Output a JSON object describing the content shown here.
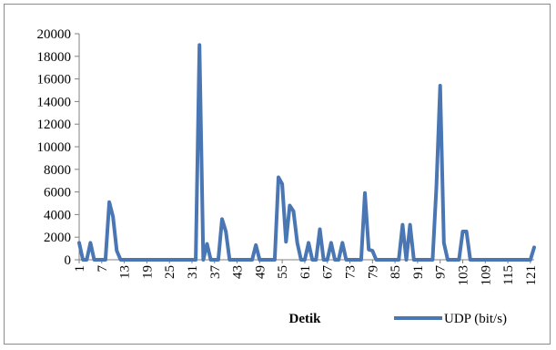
{
  "chart_data": {
    "type": "line",
    "title": "",
    "xlabel": "Detik",
    "ylabel": "",
    "ylim": [
      0,
      20000
    ],
    "yticks": [
      0,
      2000,
      4000,
      6000,
      8000,
      10000,
      12000,
      14000,
      16000,
      18000,
      20000
    ],
    "xlim": [
      1,
      122
    ],
    "xtick_labels": [
      "1",
      "7",
      "13",
      "19",
      "25",
      "31",
      "37",
      "43",
      "49",
      "55",
      "61",
      "67",
      "73",
      "79",
      "85",
      "91",
      "97",
      "103",
      "109",
      "115",
      "121"
    ],
    "grid": false,
    "legend": "bottom-right",
    "colors": {
      "line": "#4a77b4",
      "frame": "#8c8c8c",
      "axis": "#808080"
    },
    "series": [
      {
        "name": "UDP (bit/s)",
        "x": [
          1,
          2,
          3,
          4,
          5,
          6,
          7,
          8,
          9,
          10,
          11,
          12,
          13,
          14,
          15,
          16,
          17,
          18,
          19,
          20,
          21,
          22,
          23,
          24,
          25,
          26,
          27,
          28,
          29,
          30,
          31,
          32,
          33,
          34,
          35,
          36,
          37,
          38,
          39,
          40,
          41,
          42,
          43,
          44,
          45,
          46,
          47,
          48,
          49,
          50,
          51,
          52,
          53,
          54,
          55,
          56,
          57,
          58,
          59,
          60,
          61,
          62,
          63,
          64,
          65,
          66,
          67,
          68,
          69,
          70,
          71,
          72,
          73,
          74,
          75,
          76,
          77,
          78,
          79,
          80,
          81,
          82,
          83,
          84,
          85,
          86,
          87,
          88,
          89,
          90,
          91,
          92,
          93,
          94,
          95,
          96,
          97,
          98,
          99,
          100,
          101,
          102,
          103,
          104,
          105,
          106,
          107,
          108,
          109,
          110,
          111,
          112,
          113,
          114,
          115,
          116,
          117,
          118,
          119,
          120,
          121,
          122
        ],
        "values": [
          1500,
          0,
          0,
          1500,
          0,
          0,
          0,
          0,
          5100,
          3800,
          800,
          0,
          0,
          0,
          0,
          0,
          0,
          0,
          0,
          0,
          0,
          0,
          0,
          0,
          0,
          0,
          0,
          0,
          0,
          0,
          0,
          0,
          19000,
          0,
          1400,
          0,
          0,
          0,
          3600,
          2500,
          0,
          0,
          0,
          0,
          0,
          0,
          0,
          1300,
          0,
          0,
          0,
          0,
          0,
          7300,
          6700,
          1600,
          4800,
          4300,
          1500,
          0,
          0,
          1500,
          0,
          0,
          2700,
          0,
          0,
          1500,
          0,
          0,
          1500,
          0,
          0,
          0,
          0,
          0,
          5900,
          900,
          800,
          0,
          0,
          0,
          0,
          0,
          0,
          0,
          3100,
          0,
          3100,
          0,
          0,
          0,
          0,
          0,
          0,
          6500,
          15400,
          1500,
          0,
          0,
          0,
          0,
          2500,
          2500,
          0,
          0,
          0,
          0,
          0,
          0,
          0,
          0,
          0,
          0,
          0,
          0,
          0,
          0,
          0,
          0,
          0,
          1100
        ]
      }
    ]
  }
}
